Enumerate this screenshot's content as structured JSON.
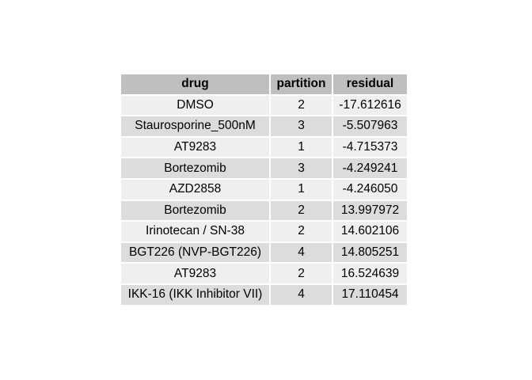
{
  "chart_data": {
    "type": "table",
    "columns": [
      "drug",
      "partition",
      "residual"
    ],
    "rows": [
      [
        "DMSO",
        "2",
        "-17.612616"
      ],
      [
        "Staurosporine_500nM",
        "3",
        "-5.507963"
      ],
      [
        "AT9283",
        "1",
        "-4.715373"
      ],
      [
        "Bortezomib",
        "3",
        "-4.249241"
      ],
      [
        "AZD2858",
        "1",
        "-4.246050"
      ],
      [
        "Bortezomib",
        "2",
        "13.997972"
      ],
      [
        "Irinotecan / SN-38",
        "2",
        "14.602106"
      ],
      [
        "BGT226 (NVP-BGT226)",
        "4",
        "14.805251"
      ],
      [
        "AT9283",
        "2",
        "16.524639"
      ],
      [
        "IKK-16 (IKK Inhibitor VII)",
        "4",
        "17.110454"
      ]
    ]
  },
  "colors": {
    "header_background": "#bfbfbf",
    "row_light": "#efefef",
    "row_dark": "#dcdcdc"
  }
}
